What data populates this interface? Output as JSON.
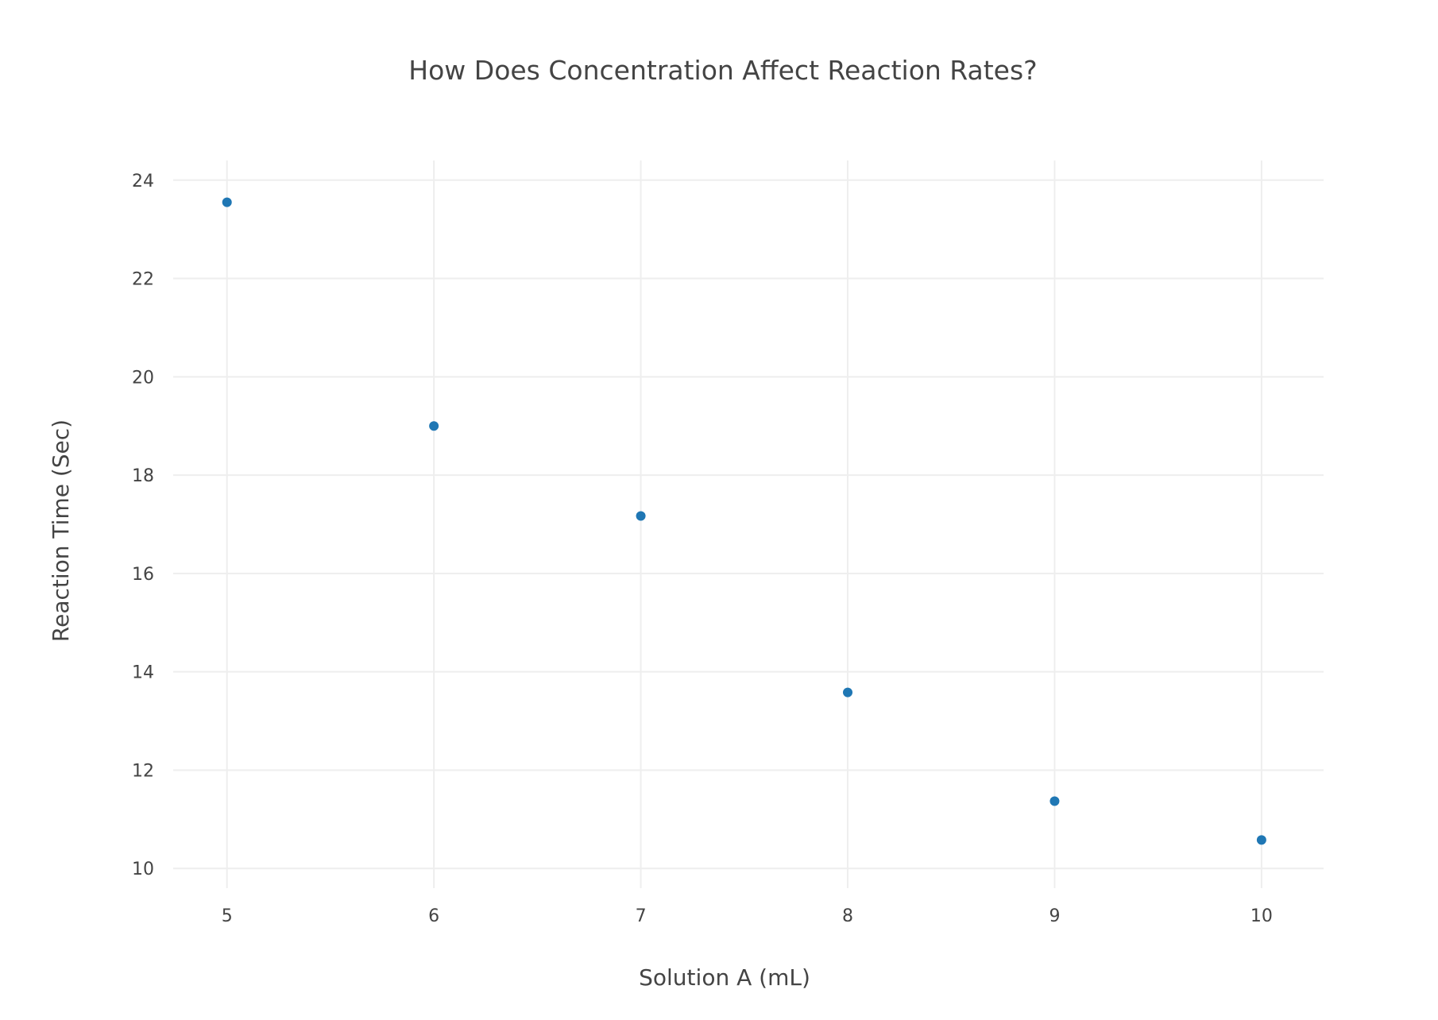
{
  "chart_data": {
    "type": "scatter",
    "title": "How Does Concentration Affect Reaction Rates?",
    "xlabel": "Solution A (mL)",
    "ylabel": "Reaction Time (Sec)",
    "x": [
      5,
      6,
      7,
      8,
      9,
      10
    ],
    "y": [
      23.55,
      19.0,
      17.17,
      13.58,
      11.37,
      10.58
    ],
    "xlim": [
      4.74,
      10.3
    ],
    "ylim": [
      9.6,
      24.4
    ],
    "xticks": [
      "5",
      "6",
      "7",
      "8",
      "9",
      "10"
    ],
    "xtick_values": [
      5,
      6,
      7,
      8,
      9,
      10
    ],
    "yticks": [
      "10",
      "12",
      "14",
      "16",
      "18",
      "20",
      "22",
      "24"
    ],
    "ytick_values": [
      10,
      12,
      14,
      16,
      18,
      20,
      22,
      24
    ],
    "grid": true,
    "legend": "none",
    "marker_color": "#1f77b4"
  }
}
